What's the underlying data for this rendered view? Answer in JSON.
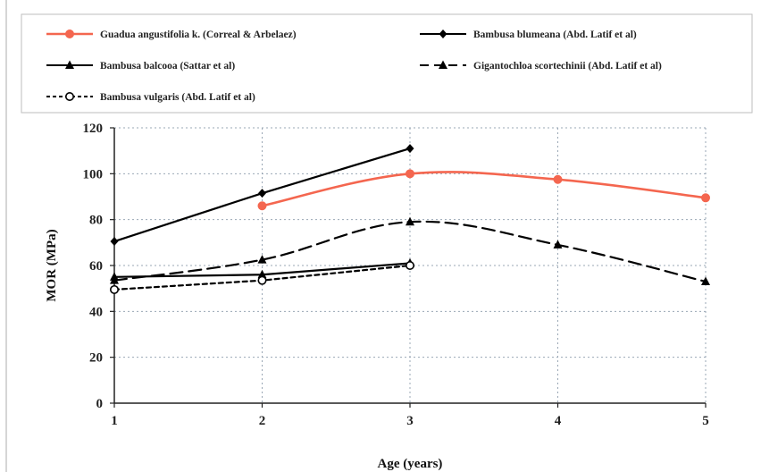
{
  "chart_data": {
    "type": "line",
    "xlabel": "Age (years)",
    "ylabel": "MOR (MPa)",
    "x_ticks": [
      1,
      2,
      3,
      4,
      5
    ],
    "y_ticks": [
      0,
      20,
      40,
      60,
      80,
      100,
      120
    ],
    "xlim": [
      1,
      5
    ],
    "ylim": [
      0,
      120
    ],
    "grid": "dotted",
    "legend_position": "top",
    "series": [
      {
        "name": "Guadua angustifolia k. (Correal & Arbelaez)",
        "color": "#f4664f",
        "style": "solid",
        "marker": "circle",
        "smooth": true,
        "x": [
          2,
          3,
          4,
          5
        ],
        "y": [
          86,
          100,
          97.5,
          89.5
        ]
      },
      {
        "name": "Bambusa blumeana (Abd. Latif et al)",
        "color": "#000000",
        "style": "solid",
        "marker": "diamond",
        "smooth": false,
        "x": [
          1,
          2,
          3
        ],
        "y": [
          70.5,
          91.5,
          111
        ]
      },
      {
        "name": "Bambusa balcooa (Sattar et al)",
        "color": "#000000",
        "style": "solid",
        "marker": "triangle",
        "smooth": false,
        "x": [
          1,
          2,
          3
        ],
        "y": [
          55,
          56,
          61
        ]
      },
      {
        "name": "Gigantochloa scortechinii (Abd. Latif et al)",
        "color": "#000000",
        "style": "dashed",
        "marker": "triangle",
        "smooth": true,
        "x": [
          1,
          2,
          3,
          4,
          5
        ],
        "y": [
          53.5,
          62.5,
          79,
          69,
          53
        ]
      },
      {
        "name": "Bambusa vulgaris (Abd. Latif et al)",
        "color": "#000000",
        "style": "short-dash",
        "marker": "circle-open",
        "smooth": false,
        "x": [
          1,
          2,
          3
        ],
        "y": [
          49.5,
          53.5,
          60
        ]
      }
    ]
  }
}
